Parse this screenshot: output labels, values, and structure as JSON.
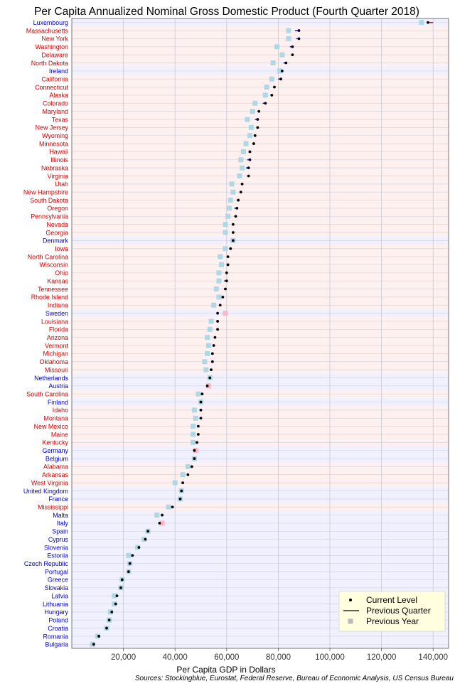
{
  "chart_data": {
    "type": "dot",
    "title": "Per Capita Annualized Nominal Gross Domestic Product (Fourth Quarter 2018)",
    "xlabel": "Per Capita GDP in Dollars",
    "ylabel": "",
    "source": "Sources: Stockingblue, Eurostat, Federal Reserve, Bureau of Economic Analysis, US Census Bureau",
    "xlim": [
      0,
      146000
    ],
    "x_ticks": [
      20000,
      40000,
      60000,
      80000,
      100000,
      120000,
      140000
    ],
    "x_tick_labels": [
      "20,000",
      "40,000",
      "60,000",
      "80,000",
      "100,000",
      "120,000",
      "140,000"
    ],
    "grid": true,
    "legend": {
      "position": "bottom-right",
      "entries": [
        "Current Level",
        "Previous Quarter",
        "Previous Year"
      ]
    },
    "colors": {
      "us_label": "#cc0000",
      "eu_label": "#0000cc",
      "us_band": "#fff0f0",
      "eu_band": "#f0f0ff",
      "point": "#000000",
      "increase_line": "#0000ff",
      "decrease_line": "#ff0000",
      "prev_year_up": "#add8e6",
      "prev_year_down": "#ffb6c1",
      "legend_bg": "#ffffe0"
    },
    "rows": [
      {
        "name": "Luxembourg",
        "group": "eu",
        "current": 138000,
        "prev_quarter": 140000,
        "prev_year": 135500
      },
      {
        "name": "Massachusetts",
        "group": "us",
        "current": 88000,
        "prev_quarter": 86500,
        "prev_year": 84000
      },
      {
        "name": "New York",
        "group": "us",
        "current": 88000,
        "prev_quarter": 87000,
        "prev_year": 84000
      },
      {
        "name": "Washington",
        "group": "us",
        "current": 85500,
        "prev_quarter": 84500,
        "prev_year": 79500
      },
      {
        "name": "Delaware",
        "group": "us",
        "current": 85500,
        "prev_quarter": 85000,
        "prev_year": 81500
      },
      {
        "name": "North Dakota",
        "group": "us",
        "current": 83000,
        "prev_quarter": 82000,
        "prev_year": 78000
      },
      {
        "name": "Ireland",
        "group": "eu",
        "current": 81500,
        "prev_quarter": 81000,
        "prev_year": 80500
      },
      {
        "name": "California",
        "group": "us",
        "current": 81000,
        "prev_quarter": 80000,
        "prev_year": 77500
      },
      {
        "name": "Connecticut",
        "group": "us",
        "current": 78500,
        "prev_quarter": 78000,
        "prev_year": 75500
      },
      {
        "name": "Alaska",
        "group": "us",
        "current": 77500,
        "prev_quarter": 77000,
        "prev_year": 75000
      },
      {
        "name": "Colorado",
        "group": "us",
        "current": 75000,
        "prev_quarter": 74000,
        "prev_year": 71000
      },
      {
        "name": "Maryland",
        "group": "us",
        "current": 72500,
        "prev_quarter": 72000,
        "prev_year": 70000
      },
      {
        "name": "Texas",
        "group": "us",
        "current": 72000,
        "prev_quarter": 71000,
        "prev_year": 68000
      },
      {
        "name": "New Jersey",
        "group": "us",
        "current": 72000,
        "prev_quarter": 71500,
        "prev_year": 69500
      },
      {
        "name": "Wyoming",
        "group": "us",
        "current": 71000,
        "prev_quarter": 70500,
        "prev_year": 69000
      },
      {
        "name": "Minnesota",
        "group": "us",
        "current": 70500,
        "prev_quarter": 70000,
        "prev_year": 67500
      },
      {
        "name": "Hawaii",
        "group": "us",
        "current": 69000,
        "prev_quarter": 68500,
        "prev_year": 66500
      },
      {
        "name": "Illinois",
        "group": "us",
        "current": 69000,
        "prev_quarter": 68000,
        "prev_year": 65500
      },
      {
        "name": "Nebraska",
        "group": "us",
        "current": 68500,
        "prev_quarter": 67500,
        "prev_year": 66000
      },
      {
        "name": "Virginia",
        "group": "us",
        "current": 68500,
        "prev_quarter": 68000,
        "prev_year": 65000
      },
      {
        "name": "Utah",
        "group": "us",
        "current": 66000,
        "prev_quarter": 65500,
        "prev_year": 62000
      },
      {
        "name": "New Hampshire",
        "group": "us",
        "current": 65500,
        "prev_quarter": 65000,
        "prev_year": 62500
      },
      {
        "name": "South Dakota",
        "group": "us",
        "current": 64500,
        "prev_quarter": 64000,
        "prev_year": 61500
      },
      {
        "name": "Oregon",
        "group": "us",
        "current": 64000,
        "prev_quarter": 63000,
        "prev_year": 61000
      },
      {
        "name": "Pennsylvania",
        "group": "us",
        "current": 63500,
        "prev_quarter": 63000,
        "prev_year": 60500
      },
      {
        "name": "Nevada",
        "group": "us",
        "current": 62500,
        "prev_quarter": 62000,
        "prev_year": 59500
      },
      {
        "name": "Georgia",
        "group": "us",
        "current": 62500,
        "prev_quarter": 62000,
        "prev_year": 59500
      },
      {
        "name": "Denmark",
        "group": "eu",
        "current": 62500,
        "prev_quarter": 63000,
        "prev_year": 62500
      },
      {
        "name": "Iowa",
        "group": "us",
        "current": 61500,
        "prev_quarter": 61000,
        "prev_year": 59500
      },
      {
        "name": "North Carolina",
        "group": "us",
        "current": 60500,
        "prev_quarter": 60000,
        "prev_year": 57500
      },
      {
        "name": "Wisconsin",
        "group": "us",
        "current": 60500,
        "prev_quarter": 60000,
        "prev_year": 58000
      },
      {
        "name": "Ohio",
        "group": "us",
        "current": 60000,
        "prev_quarter": 59500,
        "prev_year": 57000
      },
      {
        "name": "Kansas",
        "group": "us",
        "current": 60000,
        "prev_quarter": 59000,
        "prev_year": 57000
      },
      {
        "name": "Tennessee",
        "group": "us",
        "current": 59500,
        "prev_quarter": 59000,
        "prev_year": 56000
      },
      {
        "name": "Rhode Island",
        "group": "us",
        "current": 58500,
        "prev_quarter": 58000,
        "prev_year": 57000
      },
      {
        "name": "Indiana",
        "group": "us",
        "current": 57500,
        "prev_quarter": 57000,
        "prev_year": 55000
      },
      {
        "name": "Sweden",
        "group": "eu",
        "current": 56500,
        "prev_quarter": 57000,
        "prev_year": 59500
      },
      {
        "name": "Louisiana",
        "group": "us",
        "current": 56500,
        "prev_quarter": 56000,
        "prev_year": 54000
      },
      {
        "name": "Florida",
        "group": "us",
        "current": 56500,
        "prev_quarter": 56000,
        "prev_year": 53500
      },
      {
        "name": "Arizona",
        "group": "us",
        "current": 55500,
        "prev_quarter": 55000,
        "prev_year": 52500
      },
      {
        "name": "Vermont",
        "group": "us",
        "current": 55000,
        "prev_quarter": 54500,
        "prev_year": 53000
      },
      {
        "name": "Michigan",
        "group": "us",
        "current": 54500,
        "prev_quarter": 54000,
        "prev_year": 52500
      },
      {
        "name": "Oklahoma",
        "group": "us",
        "current": 54500,
        "prev_quarter": 54000,
        "prev_year": 51500
      },
      {
        "name": "Missouri",
        "group": "us",
        "current": 54000,
        "prev_quarter": 53500,
        "prev_year": 52000
      },
      {
        "name": "Netherlands",
        "group": "eu",
        "current": 53500,
        "prev_quarter": 53000,
        "prev_year": 53500
      },
      {
        "name": "Austria",
        "group": "eu",
        "current": 52500,
        "prev_quarter": 53000,
        "prev_year": 53000
      },
      {
        "name": "South Carolina",
        "group": "us",
        "current": 50500,
        "prev_quarter": 50000,
        "prev_year": 49000
      },
      {
        "name": "Finland",
        "group": "eu",
        "current": 50000,
        "prev_quarter": 50500,
        "prev_year": 50000
      },
      {
        "name": "Idaho",
        "group": "us",
        "current": 50000,
        "prev_quarter": 49500,
        "prev_year": 47500
      },
      {
        "name": "Montana",
        "group": "us",
        "current": 50000,
        "prev_quarter": 49500,
        "prev_year": 48000
      },
      {
        "name": "New Mexico",
        "group": "us",
        "current": 49000,
        "prev_quarter": 48500,
        "prev_year": 47000
      },
      {
        "name": "Maine",
        "group": "us",
        "current": 49000,
        "prev_quarter": 48500,
        "prev_year": 47000
      },
      {
        "name": "Kentucky",
        "group": "us",
        "current": 48500,
        "prev_quarter": 48000,
        "prev_year": 47000
      },
      {
        "name": "Germany",
        "group": "eu",
        "current": 47500,
        "prev_quarter": 48000,
        "prev_year": 48000
      },
      {
        "name": "Belgium",
        "group": "eu",
        "current": 47500,
        "prev_quarter": 47500,
        "prev_year": 47500
      },
      {
        "name": "Alabama",
        "group": "us",
        "current": 46500,
        "prev_quarter": 46000,
        "prev_year": 45000
      },
      {
        "name": "Arkansas",
        "group": "us",
        "current": 45000,
        "prev_quarter": 44500,
        "prev_year": 43000
      },
      {
        "name": "West Virginia",
        "group": "us",
        "current": 43000,
        "prev_quarter": 42500,
        "prev_year": 40000
      },
      {
        "name": "United Kingdom",
        "group": "eu",
        "current": 42500,
        "prev_quarter": 43000,
        "prev_year": 42500
      },
      {
        "name": "France",
        "group": "eu",
        "current": 42000,
        "prev_quarter": 42500,
        "prev_year": 42000
      },
      {
        "name": "Mississippi",
        "group": "us",
        "current": 39000,
        "prev_quarter": 38500,
        "prev_year": 37500
      },
      {
        "name": "Malta",
        "group": "eu",
        "current": 35000,
        "prev_quarter": 35500,
        "prev_year": 33000
      },
      {
        "name": "Italy",
        "group": "eu",
        "current": 34000,
        "prev_quarter": 34500,
        "prev_year": 35000
      },
      {
        "name": "Spain",
        "group": "eu",
        "current": 29500,
        "prev_quarter": 30000,
        "prev_year": 29500
      },
      {
        "name": "Cyprus",
        "group": "eu",
        "current": 28500,
        "prev_quarter": 28500,
        "prev_year": 28000
      },
      {
        "name": "Slovenia",
        "group": "eu",
        "current": 26000,
        "prev_quarter": 26500,
        "prev_year": 25500
      },
      {
        "name": "Estonia",
        "group": "eu",
        "current": 23500,
        "prev_quarter": 23000,
        "prev_year": 22000
      },
      {
        "name": "Czech Republic",
        "group": "eu",
        "current": 22500,
        "prev_quarter": 22500,
        "prev_year": 22500
      },
      {
        "name": "Portugal",
        "group": "eu",
        "current": 22000,
        "prev_quarter": 22000,
        "prev_year": 22000
      },
      {
        "name": "Greece",
        "group": "eu",
        "current": 19500,
        "prev_quarter": 20000,
        "prev_year": 19500
      },
      {
        "name": "Slovakia",
        "group": "eu",
        "current": 19000,
        "prev_quarter": 19500,
        "prev_year": 19000
      },
      {
        "name": "Latvia",
        "group": "eu",
        "current": 17500,
        "prev_quarter": 17000,
        "prev_year": 16500
      },
      {
        "name": "Lithuania",
        "group": "eu",
        "current": 17000,
        "prev_quarter": 16500,
        "prev_year": 16500
      },
      {
        "name": "Hungary",
        "group": "eu",
        "current": 15500,
        "prev_quarter": 15000,
        "prev_year": 15000
      },
      {
        "name": "Poland",
        "group": "eu",
        "current": 14500,
        "prev_quarter": 14500,
        "prev_year": 14500
      },
      {
        "name": "Croatia",
        "group": "eu",
        "current": 13500,
        "prev_quarter": 13500,
        "prev_year": 13500
      },
      {
        "name": "Romania",
        "group": "eu",
        "current": 10500,
        "prev_quarter": 10000,
        "prev_year": 10000
      },
      {
        "name": "Bulgaria",
        "group": "eu",
        "current": 8500,
        "prev_quarter": 8500,
        "prev_year": 8000
      }
    ]
  }
}
